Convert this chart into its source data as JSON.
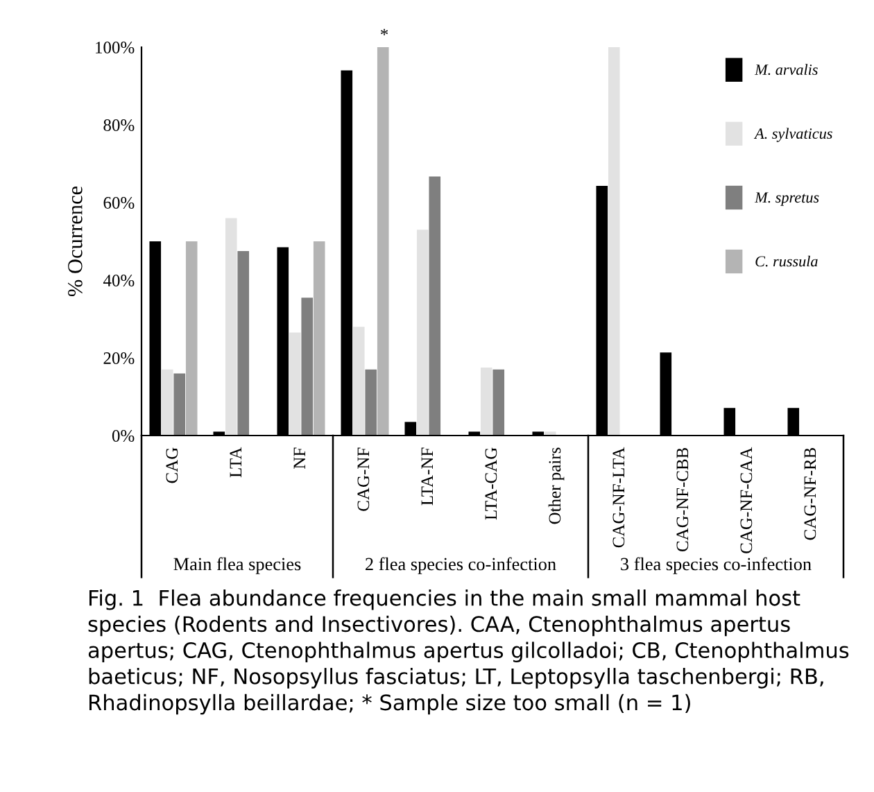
{
  "chart_data": {
    "type": "bar",
    "ylabel": "% Ocurrence",
    "categories": [
      "CAG",
      "LTA",
      "NF",
      "CAG-NF",
      "LTA-NF",
      "LTA-CAG",
      "Other pairs",
      "CAG-NF-LTA",
      "CAG-NF-CBB",
      "CAG-NF-CAA",
      "CAG-NF-RB"
    ],
    "series": [
      {
        "name": "M. arvalis",
        "color": "#000000",
        "values": [
          50,
          1,
          48.5,
          94,
          3.5,
          1,
          1,
          64.3,
          21.4,
          7.1,
          7.1
        ]
      },
      {
        "name": "A. sylvaticus",
        "color": "#e2e2e2",
        "values": [
          17,
          56,
          26.5,
          28,
          53,
          17.5,
          1,
          100,
          null,
          null,
          null
        ]
      },
      {
        "name": "M. spretus",
        "color": "#7f7f7f",
        "values": [
          16,
          47.5,
          35.5,
          17,
          66.7,
          17,
          null,
          null,
          null,
          null,
          null
        ]
      },
      {
        "name": "C. russula",
        "color": "#b4b4b4",
        "values": [
          50,
          null,
          50,
          100,
          null,
          null,
          null,
          null,
          null,
          null,
          null
        ]
      }
    ],
    "ylim": [
      0,
      100
    ],
    "yticks": [
      {
        "value": 0,
        "label": "0%"
      },
      {
        "value": 20,
        "label": "20%"
      },
      {
        "value": 40,
        "label": "40%"
      },
      {
        "value": 60,
        "label": "60%"
      },
      {
        "value": 80,
        "label": "80%"
      },
      {
        "value": 100,
        "label": "100%"
      }
    ],
    "grid": false,
    "legend": "top right",
    "annotations": [
      "*",
      "Main flea species",
      "2 flea species co-infection",
      "3 flea species co-infection",
      "Fig. 1  Flea abundance frequencies in the main small mammal host species (Rodents and Insectivores). CAA, Ctenophthalmus apertus apertus; CAG, Ctenophthalmus apertus gilcolladoi; CB, Ctenophthalmus baeticus; NF, Nosopsyllus fasciatus; LT, Leptopsylla taschenbergi; RB, Rhadinopsylla beillardae; * Sample size too small (n = 1)"
    ]
  }
}
